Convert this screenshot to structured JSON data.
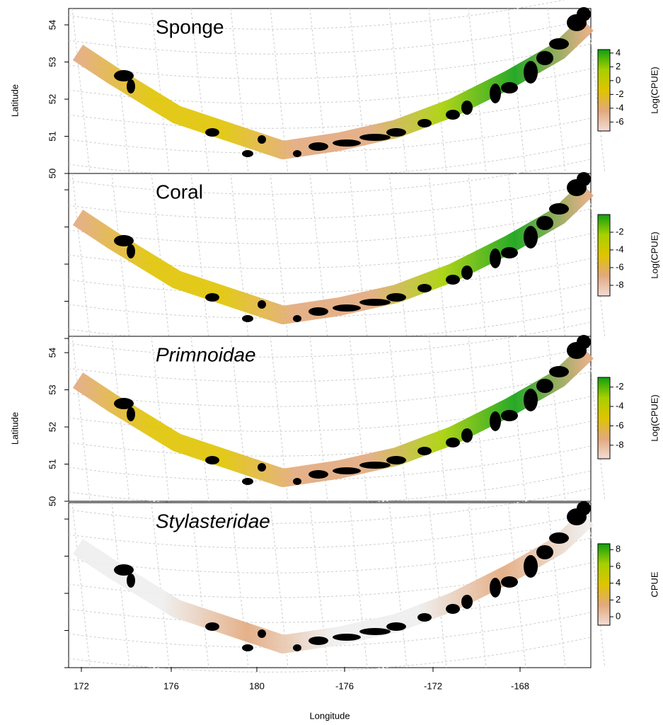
{
  "map": {
    "x_axis": {
      "label": "Longitude",
      "ticks": [
        "172",
        "176",
        "180",
        "-176",
        "-172",
        "-168"
      ]
    },
    "y_axis": {
      "label": "Latitude",
      "ticks": [
        54,
        53,
        52,
        51,
        50
      ],
      "lim": [
        50,
        54.44
      ]
    },
    "panels": [
      {
        "title": "Sponge",
        "italic": false,
        "show_latitude_labels": true,
        "colorbar": {
          "label": "Log(CPUE)",
          "lim": [
            -7.3,
            4.5
          ],
          "ticks": [
            4,
            2,
            0,
            -2,
            -4,
            -6
          ],
          "colors": [
            "#f2dcd6",
            "#e2a87c",
            "#e0c400",
            "#a8d000",
            "#10a010"
          ]
        }
      },
      {
        "title": "Coral",
        "italic": false,
        "show_latitude_labels": false,
        "colorbar": {
          "label": "Log(CPUE)",
          "lim": [
            -9.2,
            0
          ],
          "ticks": [
            -2,
            -4,
            -6,
            -8
          ],
          "colors": [
            "#f2dcd6",
            "#e2a87c",
            "#e0c400",
            "#a8d000",
            "#10a010"
          ]
        }
      },
      {
        "title": "Primnoidae",
        "italic": true,
        "show_latitude_labels": true,
        "colorbar": {
          "label": "Log(CPUE)",
          "lim": [
            -9.4,
            -1
          ],
          "ticks": [
            -2,
            -4,
            -6,
            -8
          ],
          "colors": [
            "#f2dcd6",
            "#e2a87c",
            "#e0c400",
            "#a8d000",
            "#10a010"
          ]
        }
      },
      {
        "title": "Stylasteridae",
        "italic": true,
        "show_latitude_labels": false,
        "colorbar": {
          "label": "CPUE",
          "lim": [
            -1,
            8.7
          ],
          "ticks": [
            8,
            6,
            4,
            2,
            0
          ],
          "colors": [
            "#f2dcd6",
            "#e2a87c",
            "#e0c400",
            "#a8d000",
            "#10a010"
          ]
        }
      }
    ]
  }
}
